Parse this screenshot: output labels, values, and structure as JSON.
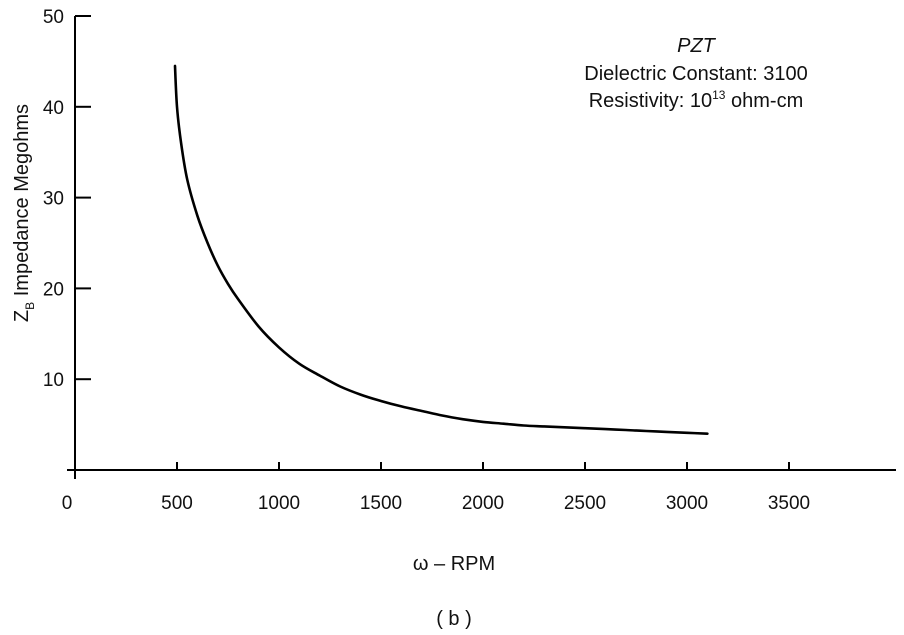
{
  "chart_data": {
    "type": "line",
    "xlabel": "ω – RPM",
    "ylabel": {
      "main": "Z",
      "subscript": "B",
      "rest": " Impedance Megohms"
    },
    "caption": "( b )",
    "xlim": [
      0,
      4000
    ],
    "ylim": [
      0,
      50
    ],
    "x_ticks": [
      "0",
      "500",
      "1000",
      "1500",
      "2000",
      "2500",
      "3000",
      "3500"
    ],
    "x_tick_values": [
      0,
      500,
      1000,
      1500,
      2000,
      2500,
      3000,
      3500
    ],
    "y_ticks": [
      "10",
      "20",
      "30",
      "40",
      "50"
    ],
    "y_tick_values": [
      10,
      20,
      30,
      40,
      50
    ],
    "grid": false,
    "annotation": {
      "material": "PZT",
      "dielectric": "Dielectric Constant: 3100",
      "resistivity_prefix": "Resistivity: 10",
      "resistivity_exponent": "13",
      "resistivity_suffix": " ohm-cm"
    },
    "series": [
      {
        "x": [
          490,
          500,
          520,
          550,
          600,
          650,
          700,
          750,
          800,
          900,
          1000,
          1100,
          1200,
          1300,
          1400,
          1500,
          1600,
          1700,
          1800,
          1900,
          2000,
          2100,
          2200,
          2300,
          2400,
          2500,
          2600,
          2700,
          2800,
          2900,
          3000,
          3100
        ],
        "y": [
          44.5,
          40,
          36,
          32,
          28,
          25,
          22.5,
          20.5,
          18.8,
          15.8,
          13.5,
          11.7,
          10.4,
          9.2,
          8.3,
          7.6,
          7.0,
          6.5,
          6.0,
          5.6,
          5.3,
          5.1,
          4.9,
          4.8,
          4.7,
          4.6,
          4.5,
          4.4,
          4.3,
          4.2,
          4.1,
          4.0
        ]
      }
    ],
    "line_color": "#000000"
  }
}
